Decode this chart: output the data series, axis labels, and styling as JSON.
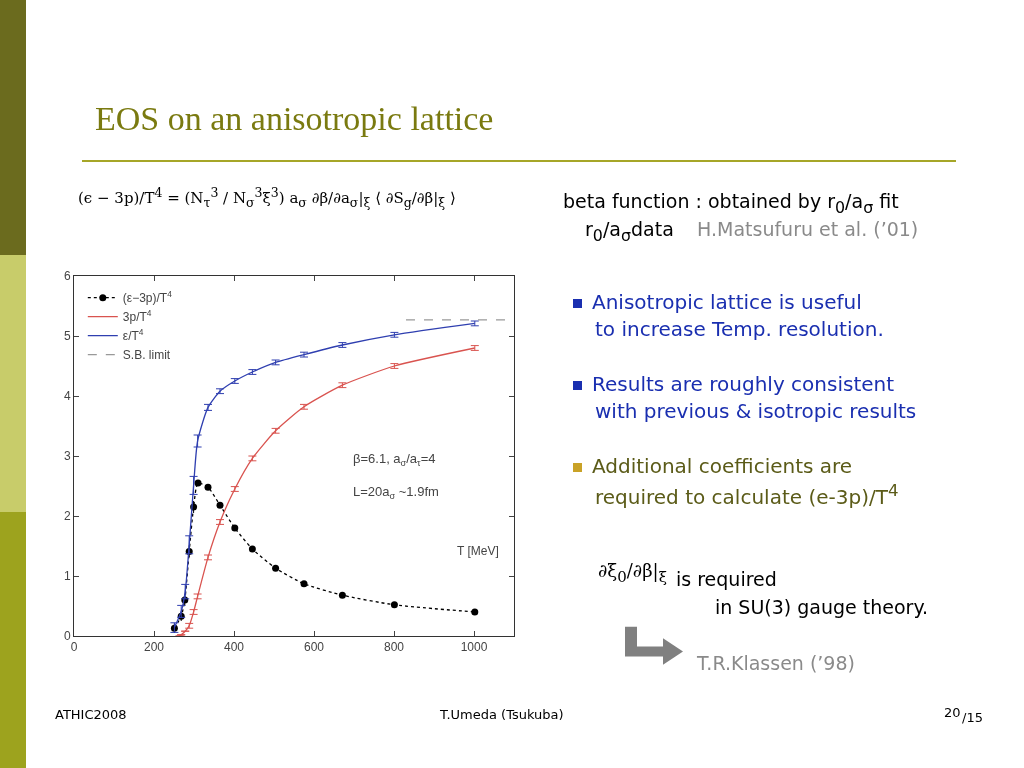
{
  "chart_data": {
    "type": "line",
    "title": "EOS on an anisotropic lattice",
    "xlabel": "T [MeV]",
    "xlim": [
      0,
      1100
    ],
    "xticks": [
      0,
      200,
      400,
      600,
      800,
      1000
    ],
    "ylim": [
      0,
      6
    ],
    "yticks": [
      0,
      1,
      2,
      3,
      4,
      5,
      6
    ],
    "grid": false,
    "legend": "top left",
    "series": [
      {
        "name": "(ε−3p)/T$^{4}$",
        "color": "#000000",
        "marker": "circle",
        "line_style": "dotted",
        "x": [
          251,
          268,
          277,
          288,
          299,
          310,
          335,
          365,
          402,
          446,
          504,
          575,
          671,
          801,
          1002
        ],
        "values": [
          0.13,
          0.33,
          0.6,
          1.41,
          2.15,
          2.55,
          2.48,
          2.18,
          1.8,
          1.45,
          1.13,
          0.87,
          0.68,
          0.52,
          0.4
        ],
        "errors": [
          0.08,
          0.08,
          0.1,
          0.1,
          0.1,
          0.05,
          0.04,
          0.04,
          0.03,
          0.03,
          0.03,
          0.03,
          0.03,
          0.03,
          0.03
        ]
      },
      {
        "name": "3p/T$^{4}$",
        "color": "#d9534f",
        "line_style": "solid",
        "x": [
          264,
          268,
          278,
          288,
          299,
          309,
          335,
          365,
          402,
          446,
          504,
          575,
          671,
          801,
          1002
        ],
        "values": [
          0,
          0.02,
          0.08,
          0.17,
          0.4,
          0.66,
          1.31,
          1.9,
          2.45,
          2.96,
          3.42,
          3.82,
          4.18,
          4.5,
          4.8
        ],
        "errors": [
          null,
          null,
          null,
          0.04,
          0.04,
          0.04,
          0.04,
          0.04,
          0.04,
          0.04,
          0.04,
          0.04,
          0.04,
          0.04,
          0.04
        ]
      },
      {
        "name": "ε/T$^{4}$",
        "color": "#2f3fb0",
        "line_style": "solid",
        "x": [
          251,
          268,
          278,
          288,
          299,
          309,
          335,
          365,
          402,
          446,
          504,
          575,
          671,
          801,
          1002
        ],
        "values": [
          0.14,
          0.41,
          0.74,
          1.52,
          2.51,
          3.25,
          3.81,
          4.08,
          4.25,
          4.4,
          4.56,
          4.69,
          4.85,
          5.02,
          5.21
        ],
        "errors": [
          0.08,
          0.1,
          0.12,
          0.15,
          0.15,
          0.1,
          0.05,
          0.04,
          0.04,
          0.04,
          0.04,
          0.04,
          0.04,
          0.04,
          0.04
        ]
      },
      {
        "name": "S.B. limit",
        "color": "#999999",
        "marker": "none",
        "line_style": "dashed",
        "x": [
          830,
          1095
        ],
        "values": [
          5.27,
          5.27
        ]
      }
    ],
    "annotations": [
      "β=6.1, a$_{σ}$/a$_{τ}$=4",
      "L=20a$_{σ}$ ~1.9fm",
      "(ϵ − 3p)/T$^{4}$ = (N$_{τ}$$^{3}$ / N$_{σ}$$^{3}$ξ$^{3}$) a$_{σ}$ ∂β/∂a$_{σ}$|$_{ξ}$ ⟨ ∂S$_{g}$/∂β|$_{ξ}$ ⟩",
      "beta function : obtained by r$_{0}$/a$_{σ}$ fit",
      "r$_{0}$/a$_{σ}$data",
      "H.Matsufuru et al. (’01)",
      "Anisotropic lattice is useful",
      "to increase Temp. resolution.",
      "Results are roughly consistent",
      "with previous & isotropic results",
      "Additional coefficients are",
      "required to calculate (e-3p)/T$^{4}$",
      "∂ξ$_{0}$/∂β|$_{ξ}$",
      "is required",
      "in SU(3) gauge theory.",
      "T.R.Klassen (’98)",
      "ATHIC2008",
      "T.Umeda (Tsukuba)",
      "20",
      "/15"
    ]
  }
}
